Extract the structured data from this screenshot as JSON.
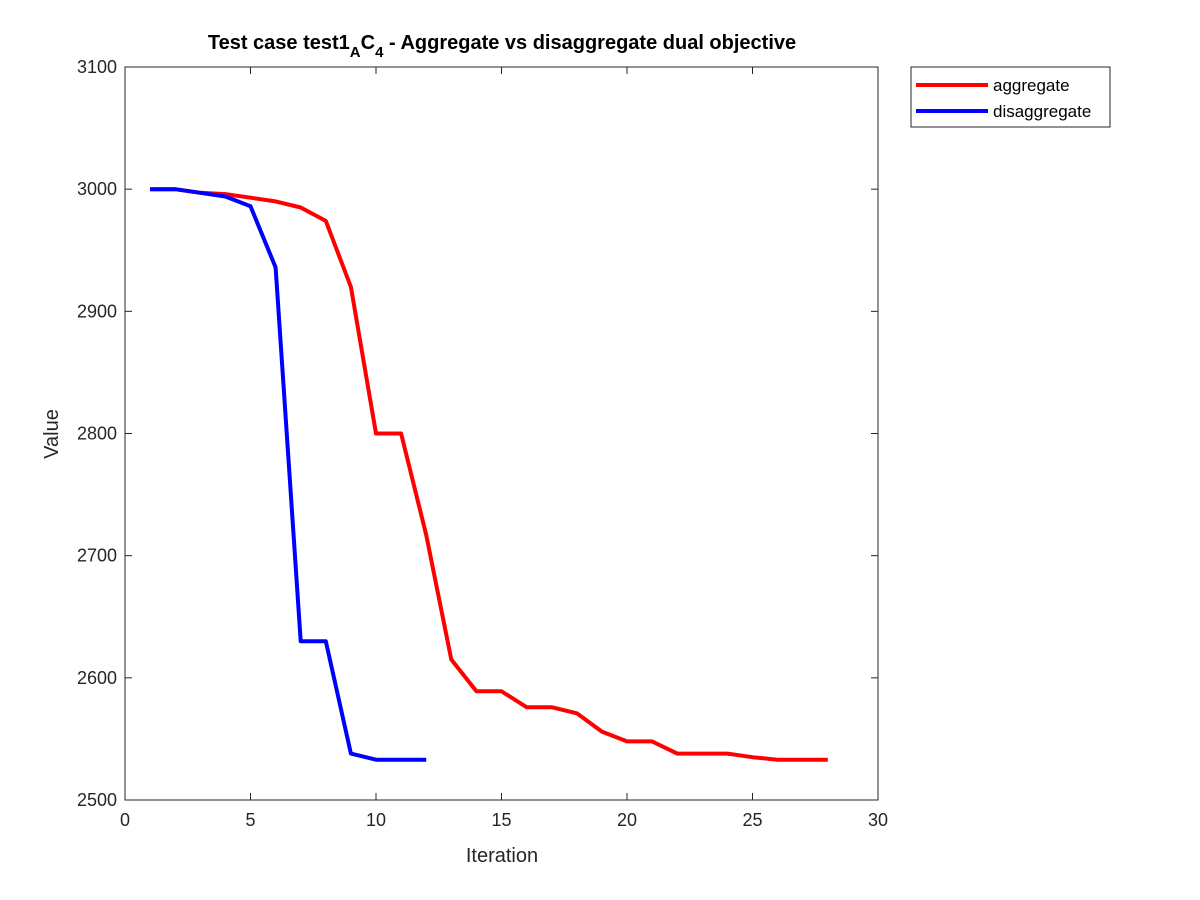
{
  "chart_data": {
    "type": "line",
    "title": {
      "prefix": "Test case test1",
      "sub1": "A",
      "mid": "C",
      "sub2": "4",
      "suffix": " - Aggregate vs disaggregate dual objective"
    },
    "xlabel": "Iteration",
    "ylabel": "Value",
    "xlim": [
      0,
      30
    ],
    "ylim": [
      2500,
      3100
    ],
    "xticks": [
      0,
      5,
      10,
      15,
      20,
      25,
      30
    ],
    "yticks": [
      2500,
      2600,
      2700,
      2800,
      2900,
      3000,
      3100
    ],
    "grid": false,
    "legend_position": "outside-top-right",
    "series": [
      {
        "name": "aggregate",
        "color": "#ff0000",
        "x": [
          1,
          2,
          3,
          4,
          5,
          6,
          7,
          8,
          9,
          10,
          11,
          12,
          13,
          14,
          15,
          16,
          17,
          18,
          19,
          20,
          21,
          22,
          23,
          24,
          25,
          26,
          27,
          28
        ],
        "y": [
          3000,
          3000,
          2997,
          2996,
          2993,
          2990,
          2985,
          2974,
          2920,
          2800,
          2800,
          2717,
          2615,
          2589,
          2589,
          2576,
          2576,
          2571,
          2556,
          2548,
          2548,
          2538,
          2538,
          2538,
          2535,
          2533,
          2533,
          2533
        ]
      },
      {
        "name": "disaggregate",
        "color": "#0000ff",
        "x": [
          1,
          2,
          3,
          4,
          5,
          6,
          7,
          8,
          9,
          10,
          11,
          12
        ],
        "y": [
          3000,
          3000,
          2997,
          2994,
          2986,
          2936,
          2630,
          2630,
          2538,
          2533,
          2533,
          2533
        ]
      }
    ]
  }
}
